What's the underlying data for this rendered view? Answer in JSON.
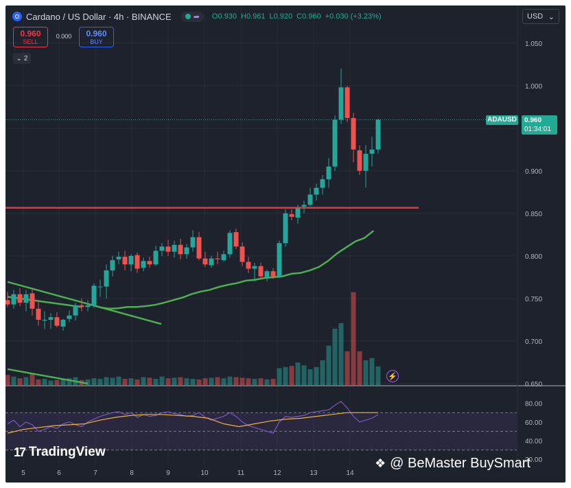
{
  "header": {
    "symbol_title": "Cardano / US Dollar · 4h · BINANCE",
    "ohlc": {
      "o": "O0.930",
      "h": "H0.961",
      "l": "L0.920",
      "c": "C0.960",
      "chg": "+0.030 (+3.23%)"
    },
    "share_icon": "share-icon"
  },
  "trade": {
    "sell_value": "0.960",
    "sell_label": "SELL",
    "spread": "0.000",
    "buy_value": "0.960",
    "buy_label": "BUY"
  },
  "indicator_toggle": {
    "label": "2",
    "icon": "chevron-down-icon"
  },
  "currency_select": {
    "value": "USD",
    "icon": "chevron-down-icon"
  },
  "price_tag": {
    "symbol": "ADAUSD",
    "price": "0.960",
    "countdown": "01:34:01"
  },
  "branding": {
    "tradingview": "TradingView",
    "watermark": "@ BeMaster BuySmart"
  },
  "colors": {
    "up": "#26a69a",
    "down": "#ef5350",
    "ma": "#4caf50",
    "resistance": "#e53935",
    "rsi": "#7e57c2",
    "rsi_ma": "#f0b33a",
    "bg": "#1e222d"
  },
  "chart_data": {
    "type": "candlestick",
    "title": "Cardano / US Dollar · 4h · BINANCE",
    "xlabel": "",
    "ylabel": "",
    "x_ticks": [
      "5",
      "6",
      "7",
      "8",
      "9",
      "10",
      "11",
      "12",
      "13",
      "14"
    ],
    "y_ticks": [
      "1.050",
      "1.000",
      "0.950",
      "0.900",
      "0.850",
      "0.800",
      "0.750",
      "0.700",
      "0.650"
    ],
    "ylim": [
      0.6475,
      1.07
    ],
    "candles": [
      [
        0.748,
        0.758,
        0.74,
        0.743
      ],
      [
        0.743,
        0.76,
        0.738,
        0.755
      ],
      [
        0.755,
        0.762,
        0.741,
        0.745
      ],
      [
        0.745,
        0.76,
        0.735,
        0.755
      ],
      [
        0.756,
        0.762,
        0.73,
        0.738
      ],
      [
        0.738,
        0.748,
        0.718,
        0.725
      ],
      [
        0.724,
        0.735,
        0.714,
        0.725
      ],
      [
        0.725,
        0.733,
        0.714,
        0.728
      ],
      [
        0.728,
        0.734,
        0.716,
        0.718
      ],
      [
        0.717,
        0.726,
        0.712,
        0.725
      ],
      [
        0.726,
        0.736,
        0.722,
        0.73
      ],
      [
        0.73,
        0.745,
        0.724,
        0.742
      ],
      [
        0.742,
        0.75,
        0.735,
        0.74
      ],
      [
        0.74,
        0.748,
        0.735,
        0.742
      ],
      [
        0.741,
        0.768,
        0.739,
        0.765
      ],
      [
        0.764,
        0.772,
        0.752,
        0.764
      ],
      [
        0.764,
        0.79,
        0.75,
        0.783
      ],
      [
        0.783,
        0.8,
        0.776,
        0.795
      ],
      [
        0.796,
        0.805,
        0.79,
        0.799
      ],
      [
        0.799,
        0.806,
        0.783,
        0.79
      ],
      [
        0.79,
        0.802,
        0.782,
        0.8
      ],
      [
        0.801,
        0.804,
        0.78,
        0.785
      ],
      [
        0.786,
        0.798,
        0.782,
        0.794
      ],
      [
        0.794,
        0.799,
        0.786,
        0.79
      ],
      [
        0.79,
        0.812,
        0.788,
        0.806
      ],
      [
        0.806,
        0.815,
        0.8,
        0.811
      ],
      [
        0.811,
        0.819,
        0.8,
        0.805
      ],
      [
        0.805,
        0.818,
        0.798,
        0.813
      ],
      [
        0.813,
        0.82,
        0.796,
        0.802
      ],
      [
        0.802,
        0.814,
        0.797,
        0.81
      ],
      [
        0.81,
        0.83,
        0.805,
        0.822
      ],
      [
        0.822,
        0.828,
        0.795,
        0.797
      ],
      [
        0.797,
        0.805,
        0.787,
        0.79
      ],
      [
        0.789,
        0.8,
        0.786,
        0.797
      ],
      [
        0.797,
        0.805,
        0.79,
        0.796
      ],
      [
        0.795,
        0.806,
        0.793,
        0.802
      ],
      [
        0.802,
        0.83,
        0.798,
        0.827
      ],
      [
        0.828,
        0.832,
        0.808,
        0.811
      ],
      [
        0.811,
        0.816,
        0.788,
        0.793
      ],
      [
        0.793,
        0.799,
        0.78,
        0.785
      ],
      [
        0.785,
        0.792,
        0.77,
        0.788
      ],
      [
        0.788,
        0.792,
        0.772,
        0.776
      ],
      [
        0.775,
        0.784,
        0.77,
        0.782
      ],
      [
        0.782,
        0.786,
        0.773,
        0.776
      ],
      [
        0.776,
        0.818,
        0.774,
        0.815
      ],
      [
        0.815,
        0.855,
        0.811,
        0.85
      ],
      [
        0.849,
        0.855,
        0.842,
        0.846
      ],
      [
        0.845,
        0.86,
        0.838,
        0.856
      ],
      [
        0.858,
        0.865,
        0.85,
        0.86
      ],
      [
        0.86,
        0.88,
        0.858,
        0.872
      ],
      [
        0.872,
        0.885,
        0.865,
        0.88
      ],
      [
        0.88,
        0.895,
        0.872,
        0.89
      ],
      [
        0.89,
        0.915,
        0.88,
        0.905
      ],
      [
        0.905,
        0.965,
        0.9,
        0.96
      ],
      [
        0.96,
        1.02,
        0.955,
        0.998
      ],
      [
        0.998,
        1.0,
        0.957,
        0.962
      ],
      [
        0.962,
        0.968,
        0.91,
        0.925
      ],
      [
        0.924,
        0.93,
        0.895,
        0.9
      ],
      [
        0.9,
        0.93,
        0.88,
        0.92
      ],
      [
        0.92,
        0.94,
        0.905,
        0.925
      ],
      [
        0.925,
        0.961,
        0.92,
        0.96
      ]
    ],
    "volume": [
      18,
      15,
      12,
      14,
      20,
      10,
      11,
      8,
      9,
      10,
      12,
      14,
      9,
      10,
      12,
      11,
      14,
      13,
      15,
      11,
      12,
      10,
      14,
      13,
      11,
      15,
      12,
      13,
      14,
      12,
      11,
      10,
      12,
      13,
      14,
      12,
      15,
      14,
      13,
      12,
      11,
      12,
      10,
      11,
      30,
      32,
      34,
      40,
      35,
      28,
      32,
      44,
      70,
      100,
      110,
      60,
      165,
      60,
      44,
      48,
      33
    ],
    "moving_average": [
      0.7395,
      0.738,
      0.7385,
      0.74,
      0.74,
      0.741,
      0.7425,
      0.745,
      0.748,
      0.751,
      0.755,
      0.758,
      0.76,
      0.7635,
      0.766,
      0.768,
      0.771,
      0.772,
      0.774,
      0.775,
      0.776,
      0.779,
      0.78,
      0.783,
      0.787,
      0.794,
      0.803,
      0.81,
      0.817,
      0.821,
      0.8295
    ],
    "resistance_level": 0.8565,
    "trendlines": [
      {
        "from": [
          0,
          0.7695
        ],
        "to": [
          18,
          0.72
        ]
      },
      {
        "from": [
          0,
          0.752
        ],
        "to": [
          12,
          0.74
        ]
      },
      {
        "from": [
          0,
          0.667
        ],
        "to": [
          13,
          0.65
        ]
      }
    ],
    "rsi": {
      "y_ticks": [
        "80.00",
        "60.00",
        "40.00",
        "20.00"
      ],
      "ylim": [
        15,
        90
      ],
      "levels": [
        70,
        50,
        30
      ],
      "values": [
        58,
        62,
        55,
        60,
        57,
        50,
        52,
        55,
        53,
        58,
        60,
        57,
        55,
        60,
        63,
        66,
        68,
        70,
        71,
        68,
        70,
        65,
        68,
        66,
        67,
        70,
        71,
        69,
        68,
        66,
        67,
        70,
        65,
        62,
        64,
        66,
        70,
        66,
        60,
        56,
        54,
        52,
        50,
        48,
        60,
        66,
        65,
        66,
        67,
        70,
        71,
        72,
        73,
        78,
        82,
        75,
        66,
        60,
        62,
        64,
        68
      ],
      "ma_values": [
        48,
        52,
        54,
        56,
        57,
        58,
        62,
        65,
        67,
        68,
        68,
        67,
        66,
        64,
        58,
        55,
        58,
        61,
        63,
        64,
        66,
        68,
        70,
        70,
        70
      ]
    }
  }
}
